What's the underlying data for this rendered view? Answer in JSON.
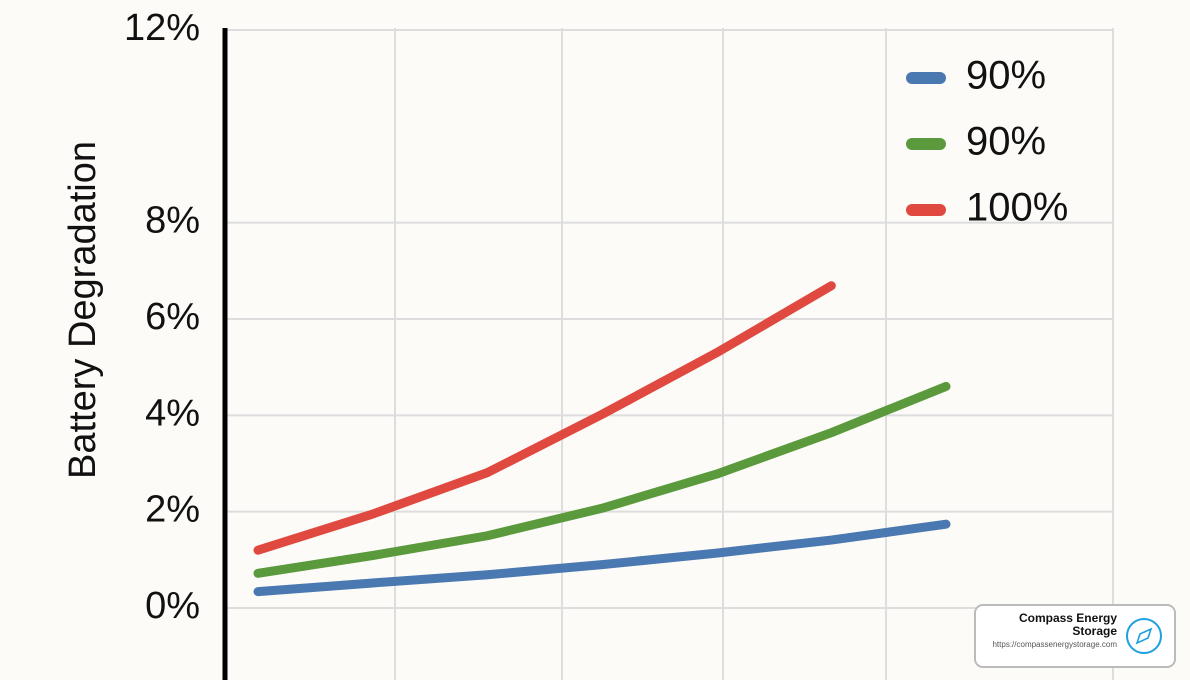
{
  "chart_data": {
    "type": "line",
    "y_label": "Battery Degradation",
    "categories": [
      null,
      null,
      null,
      null,
      null,
      null,
      null
    ],
    "series": [
      {
        "name": "90%",
        "color": "#4a78b0",
        "values": [
          0.34,
          0.52,
          0.69,
          0.9,
          1.14,
          1.41,
          1.74
        ]
      },
      {
        "name": "90%",
        "color": "#5a9a3c",
        "values": [
          0.72,
          1.09,
          1.5,
          2.07,
          2.78,
          3.64,
          4.6
        ]
      },
      {
        "name": "100%",
        "color": "#e0493f",
        "values": [
          1.2,
          1.95,
          2.81,
          4.02,
          5.3,
          6.69,
          null
        ]
      }
    ],
    "ylim": [
      -1.5,
      12
    ],
    "yticks": [
      {
        "value": 0,
        "label": "0%"
      },
      {
        "value": 2,
        "label": "2%"
      },
      {
        "value": 4,
        "label": "4%"
      },
      {
        "value": 6,
        "label": "6%"
      },
      {
        "value": 8,
        "label": "8%"
      },
      {
        "value": 12,
        "label": "12%"
      }
    ],
    "grid": true,
    "legend": "top-right",
    "watermark": {
      "title": "Compass Energy Storage",
      "url": "https://compassenergystorage.com"
    }
  }
}
